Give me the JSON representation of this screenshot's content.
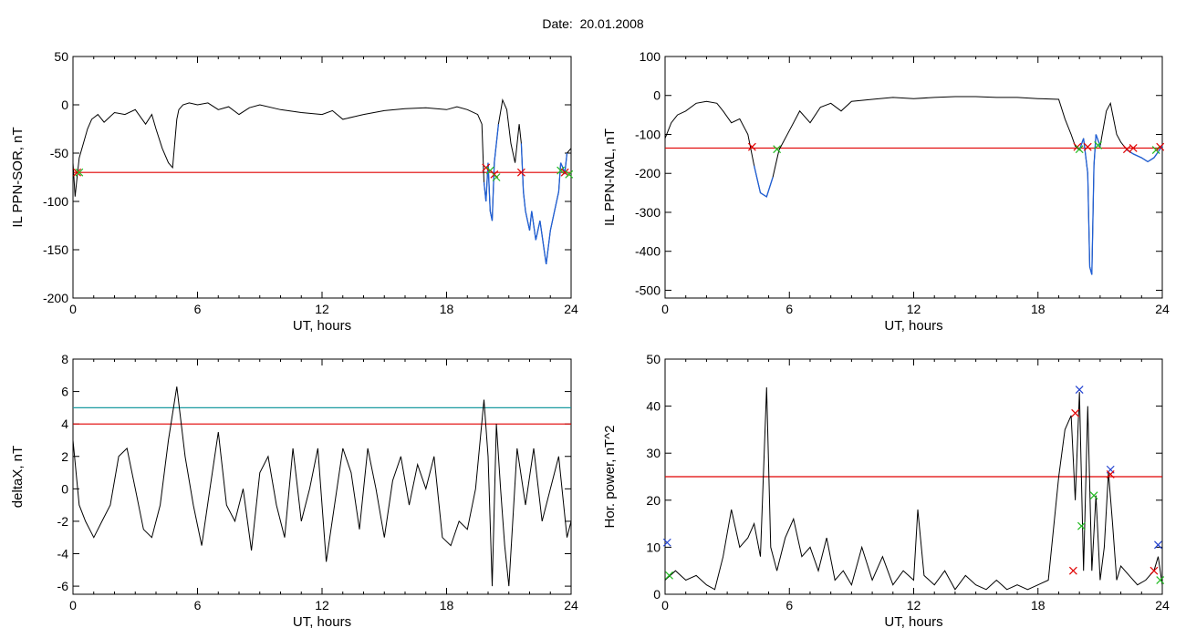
{
  "header": {
    "date_label": "Date:",
    "date_value": "20.01.2008"
  },
  "colors": {
    "data_line": "#000000",
    "event_segment": "#1f5fd6",
    "threshold": "#e00000",
    "threshold2": "#1a9aa0",
    "marker_red": "#e00000",
    "marker_green": "#22bb22",
    "marker_blue": "#2040d0"
  },
  "chart_data": [
    {
      "type": "line",
      "ylabel": "IL PPN-SOR, nT",
      "xlabel": "UT, hours",
      "xlim": [
        0,
        24
      ],
      "ylim": [
        -200,
        50
      ],
      "xticks": [
        0,
        6,
        12,
        18,
        24
      ],
      "yticks": [
        -200,
        -150,
        -100,
        -50,
        0,
        50
      ],
      "threshold": -70,
      "series": [
        {
          "x": [
            0,
            0.1,
            0.2,
            0.3,
            0.5,
            0.7,
            0.9,
            1.2,
            1.5,
            1.8,
            2.0,
            2.5,
            3.0,
            3.5,
            3.8,
            4.0,
            4.3,
            4.6,
            4.8,
            5.0,
            5.1,
            5.3,
            5.6,
            6.0,
            6.5,
            7.0,
            7.5,
            8.0,
            8.5,
            9,
            10,
            11,
            12,
            12.5,
            13,
            14,
            15,
            16,
            17,
            18,
            18.5,
            19.0,
            19.5,
            19.7,
            19.8,
            19.9,
            20.0,
            20.1,
            20.2,
            20.3,
            20.5,
            20.7,
            20.9,
            21.1,
            21.3,
            21.5,
            21.6,
            21.7,
            21.8,
            22.0,
            22.1,
            22.3,
            22.5,
            22.7,
            22.8,
            23.0,
            23.2,
            23.4,
            23.5,
            23.7,
            23.8,
            24.0
          ],
          "y": [
            -60,
            -95,
            -75,
            -55,
            -40,
            -25,
            -15,
            -10,
            -18,
            -12,
            -8,
            -10,
            -5,
            -20,
            -10,
            -25,
            -45,
            -60,
            -65,
            -15,
            -5,
            0,
            2,
            0,
            2,
            -5,
            -2,
            -10,
            -3,
            0,
            -5,
            -8,
            -10,
            -6,
            -15,
            -10,
            -6,
            -4,
            -3,
            -5,
            -2,
            -5,
            -10,
            -20,
            -80,
            -100,
            -60,
            -110,
            -120,
            -60,
            -20,
            5,
            -5,
            -40,
            -60,
            -20,
            -40,
            -90,
            -110,
            -130,
            -110,
            -140,
            -120,
            -150,
            -165,
            -130,
            -110,
            -90,
            -60,
            -70,
            -50,
            -45
          ]
        }
      ],
      "markers": [
        {
          "x": 0.2,
          "y": -70,
          "color": "marker_red"
        },
        {
          "x": 0.3,
          "y": -70,
          "color": "marker_green"
        },
        {
          "x": 19.9,
          "y": -65,
          "color": "marker_red"
        },
        {
          "x": 20.1,
          "y": -68,
          "color": "marker_green"
        },
        {
          "x": 20.3,
          "y": -72,
          "color": "marker_red"
        },
        {
          "x": 20.4,
          "y": -75,
          "color": "marker_green"
        },
        {
          "x": 21.6,
          "y": -70,
          "color": "marker_red"
        },
        {
          "x": 23.5,
          "y": -68,
          "color": "marker_green"
        },
        {
          "x": 23.7,
          "y": -70,
          "color": "marker_red"
        },
        {
          "x": 23.9,
          "y": -72,
          "color": "marker_green"
        }
      ],
      "event_spans": [
        [
          19.8,
          20.5
        ],
        [
          21.6,
          23.8
        ]
      ]
    },
    {
      "type": "line",
      "ylabel": "IL PPN-NAL, nT",
      "xlabel": "UT, hours",
      "xlim": [
        0,
        24
      ],
      "ylim": [
        -520,
        100
      ],
      "xticks": [
        0,
        6,
        12,
        18,
        24
      ],
      "yticks": [
        -500,
        -400,
        -300,
        -200,
        -100,
        0,
        100
      ],
      "threshold": -135,
      "series": [
        {
          "x": [
            0,
            0.3,
            0.6,
            1.0,
            1.5,
            2.0,
            2.5,
            2.8,
            3.2,
            3.6,
            4.0,
            4.3,
            4.6,
            4.9,
            5.2,
            5.5,
            6.0,
            6.5,
            7.0,
            7.5,
            8.0,
            8.5,
            9.0,
            10,
            11,
            12,
            13,
            14,
            15,
            16,
            17,
            18,
            19,
            19.3,
            19.6,
            19.8,
            20.0,
            20.2,
            20.4,
            20.5,
            20.6,
            20.7,
            20.8,
            21.0,
            21.3,
            21.5,
            21.8,
            22.0,
            22.3,
            22.6,
            23.0,
            23.3,
            23.6,
            24.0
          ],
          "y": [
            -110,
            -70,
            -50,
            -40,
            -20,
            -15,
            -20,
            -40,
            -70,
            -60,
            -100,
            -180,
            -250,
            -260,
            -210,
            -140,
            -90,
            -40,
            -70,
            -30,
            -20,
            -40,
            -15,
            -10,
            -5,
            -8,
            -5,
            -3,
            -3,
            -5,
            -5,
            -8,
            -10,
            -60,
            -100,
            -130,
            -140,
            -110,
            -200,
            -440,
            -460,
            -180,
            -100,
            -130,
            -40,
            -20,
            -100,
            -120,
            -140,
            -150,
            -160,
            -170,
            -160,
            -130
          ]
        }
      ],
      "markers": [
        {
          "x": 4.2,
          "y": -132,
          "color": "marker_red"
        },
        {
          "x": 5.4,
          "y": -138,
          "color": "marker_green"
        },
        {
          "x": 19.9,
          "y": -132,
          "color": "marker_red"
        },
        {
          "x": 20.0,
          "y": -138,
          "color": "marker_green"
        },
        {
          "x": 20.4,
          "y": -132,
          "color": "marker_red"
        },
        {
          "x": 20.9,
          "y": -128,
          "color": "marker_green"
        },
        {
          "x": 22.3,
          "y": -138,
          "color": "marker_red"
        },
        {
          "x": 22.6,
          "y": -135,
          "color": "marker_red"
        },
        {
          "x": 23.7,
          "y": -140,
          "color": "marker_green"
        },
        {
          "x": 23.9,
          "y": -132,
          "color": "marker_red"
        }
      ],
      "event_spans": [
        [
          4.2,
          5.4
        ],
        [
          19.9,
          21.0
        ],
        [
          22.3,
          24.0
        ]
      ]
    },
    {
      "type": "line",
      "ylabel": "deltaX, nT",
      "xlabel": "UT, hours",
      "xlim": [
        0,
        24
      ],
      "ylim": [
        -6.5,
        8
      ],
      "xticks": [
        0,
        6,
        12,
        18,
        24
      ],
      "yticks": [
        -6,
        -4,
        -2,
        0,
        2,
        4,
        6,
        8
      ],
      "threshold": 4,
      "threshold2": 5,
      "series": [
        {
          "x": [
            0,
            0.3,
            0.6,
            1.0,
            1.4,
            1.8,
            2.2,
            2.6,
            3.0,
            3.4,
            3.8,
            4.2,
            4.6,
            5.0,
            5.4,
            5.8,
            6.2,
            6.6,
            7.0,
            7.4,
            7.8,
            8.2,
            8.6,
            9.0,
            9.4,
            9.8,
            10.2,
            10.6,
            11.0,
            11.4,
            11.8,
            12.2,
            12.6,
            13.0,
            13.4,
            13.8,
            14.2,
            14.6,
            15.0,
            15.4,
            15.8,
            16.2,
            16.6,
            17.0,
            17.4,
            17.8,
            18.2,
            18.6,
            19.0,
            19.4,
            19.8,
            20.0,
            20.2,
            20.4,
            20.6,
            20.8,
            21.0,
            21.4,
            21.8,
            22.2,
            22.6,
            23.0,
            23.4,
            23.8,
            24.0
          ],
          "y": [
            3,
            -1,
            -2,
            -3,
            -2,
            -1,
            2,
            2.5,
            0,
            -2.5,
            -3,
            -1,
            3,
            6.3,
            2,
            -1,
            -3.5,
            0,
            3.5,
            -1,
            -2,
            0,
            -3.8,
            1,
            2,
            -1,
            -3,
            2.5,
            -2,
            0,
            2.5,
            -4.5,
            -1,
            2.5,
            1,
            -2.5,
            2.5,
            0,
            -3,
            0.5,
            2,
            -1,
            1.5,
            0,
            2,
            -3,
            -3.5,
            -2,
            -2.5,
            0,
            5.5,
            2,
            -6,
            4,
            0,
            -3.5,
            -6,
            2.5,
            -1,
            2.5,
            -2,
            0,
            2,
            -3,
            -2
          ]
        }
      ]
    },
    {
      "type": "line",
      "ylabel": "Hor. power, nT^2",
      "xlabel": "UT, hours",
      "xlim": [
        0,
        24
      ],
      "ylim": [
        0,
        50
      ],
      "xticks": [
        0,
        6,
        12,
        18,
        24
      ],
      "yticks": [
        0,
        10,
        20,
        30,
        40,
        50
      ],
      "threshold": 25,
      "series": [
        {
          "x": [
            0,
            0.5,
            1.0,
            1.5,
            2.0,
            2.4,
            2.8,
            3.2,
            3.6,
            4.0,
            4.3,
            4.6,
            4.9,
            5.1,
            5.4,
            5.8,
            6.2,
            6.6,
            7.0,
            7.4,
            7.8,
            8.2,
            8.6,
            9.0,
            9.5,
            10,
            10.5,
            11,
            11.5,
            12.0,
            12.2,
            12.5,
            13,
            13.5,
            14,
            14.5,
            15,
            15.5,
            16,
            16.5,
            17,
            17.5,
            18,
            18.5,
            19.0,
            19.3,
            19.6,
            19.8,
            20.0,
            20.2,
            20.4,
            20.6,
            20.8,
            21.0,
            21.2,
            21.4,
            21.6,
            21.8,
            22.0,
            22.4,
            22.8,
            23.2,
            23.6,
            23.8,
            24.0
          ],
          "y": [
            3,
            5,
            3,
            4,
            2,
            1,
            8,
            18,
            10,
            12,
            15,
            8,
            44,
            10,
            5,
            12,
            16,
            8,
            10,
            5,
            12,
            3,
            5,
            2,
            10,
            3,
            8,
            2,
            5,
            3,
            18,
            4,
            2,
            5,
            1,
            4,
            2,
            1,
            3,
            1,
            2,
            1,
            2,
            3,
            25,
            35,
            38,
            20,
            43,
            5,
            40,
            5,
            21,
            3,
            10,
            26,
            15,
            3,
            6,
            4,
            2,
            3,
            5,
            8,
            2
          ]
        }
      ],
      "markers": [
        {
          "x": 0.1,
          "y": 11,
          "color": "marker_blue"
        },
        {
          "x": 0.2,
          "y": 4,
          "color": "marker_green"
        },
        {
          "x": 19.7,
          "y": 5,
          "color": "marker_red"
        },
        {
          "x": 19.8,
          "y": 38.5,
          "color": "marker_red"
        },
        {
          "x": 20.0,
          "y": 43.5,
          "color": "marker_blue"
        },
        {
          "x": 20.1,
          "y": 14.5,
          "color": "marker_green"
        },
        {
          "x": 20.7,
          "y": 21,
          "color": "marker_green"
        },
        {
          "x": 21.5,
          "y": 26.5,
          "color": "marker_blue"
        },
        {
          "x": 21.5,
          "y": 25.5,
          "color": "marker_red"
        },
        {
          "x": 23.6,
          "y": 5,
          "color": "marker_red"
        },
        {
          "x": 23.8,
          "y": 10.5,
          "color": "marker_blue"
        },
        {
          "x": 23.9,
          "y": 3,
          "color": "marker_green"
        }
      ]
    }
  ]
}
